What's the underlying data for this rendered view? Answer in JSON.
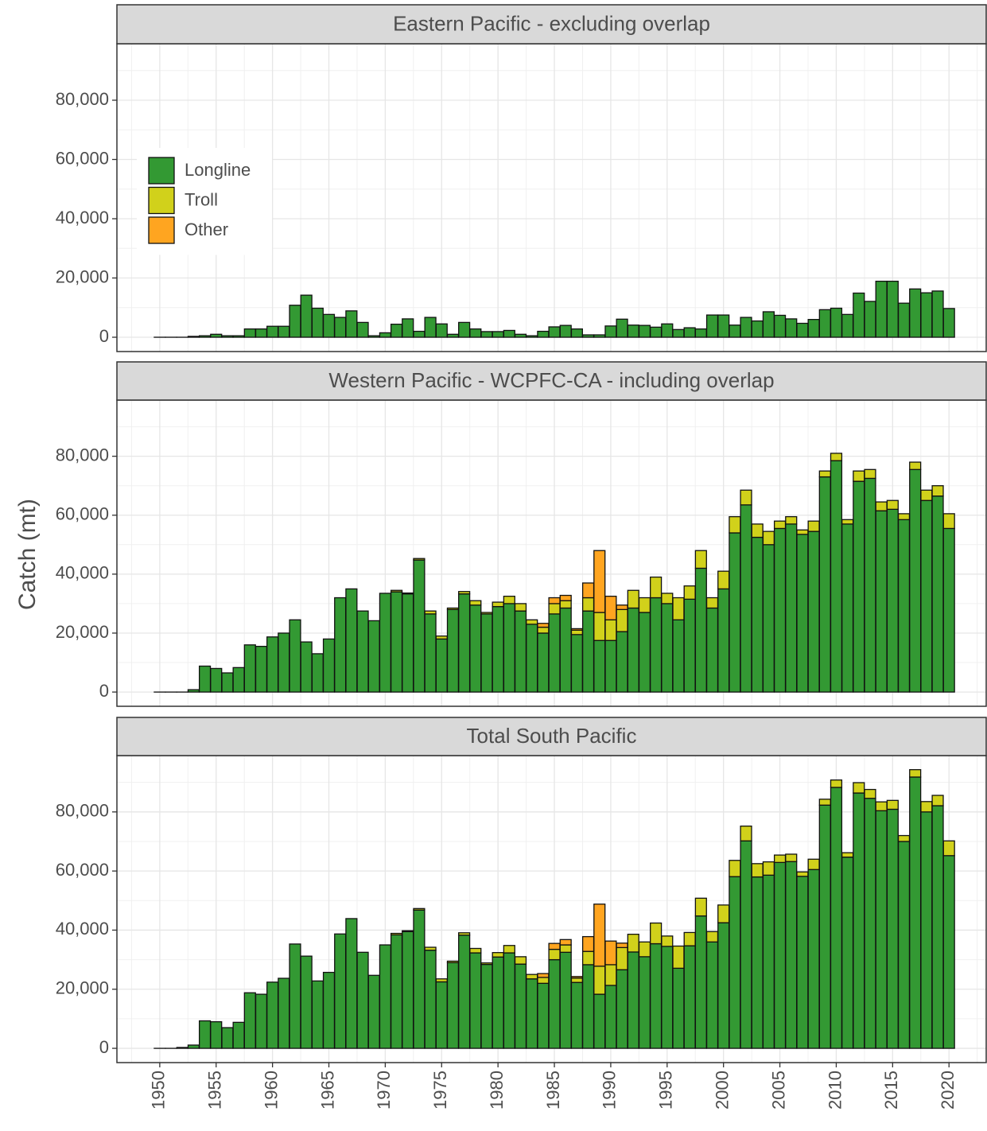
{
  "chart_data": [
    {
      "type": "bar",
      "stacked": true,
      "title": "Eastern Pacific - excluding overlap",
      "legend": "top-left",
      "grid": true,
      "ylim": [
        -4830,
        99060
      ],
      "yticks": [
        0,
        {
          "value": 20000,
          "label": "20,000"
        },
        {
          "value": 40000,
          "label": "40,000"
        },
        {
          "value": 60000,
          "label": "60,000"
        },
        {
          "value": 80000,
          "label": "80,000"
        }
      ],
      "xlim": [
        1946.2,
        2023.3
      ],
      "xticks": [
        1950,
        1955,
        1960,
        1965,
        1970,
        1975,
        1980,
        1985,
        1990,
        1995,
        2000,
        2005,
        2010,
        2015,
        2020
      ],
      "x": [
        1950,
        1951,
        1952,
        1953,
        1954,
        1955,
        1956,
        1957,
        1958,
        1959,
        1960,
        1961,
        1962,
        1963,
        1964,
        1965,
        1966,
        1967,
        1968,
        1969,
        1970,
        1971,
        1972,
        1973,
        1974,
        1975,
        1976,
        1977,
        1978,
        1979,
        1980,
        1981,
        1982,
        1983,
        1984,
        1985,
        1986,
        1987,
        1988,
        1989,
        1990,
        1991,
        1992,
        1993,
        1994,
        1995,
        1996,
        1997,
        1998,
        1999,
        2000,
        2001,
        2002,
        2003,
        2004,
        2005,
        2006,
        2007,
        2008,
        2009,
        2010,
        2011,
        2012,
        2013,
        2014,
        2015,
        2016,
        2017,
        2018,
        2019,
        2020
      ],
      "series": [
        {
          "name": "Longline",
          "color": "#339933",
          "values": [
            0,
            0,
            0,
            300,
            500,
            1000,
            500,
            500,
            2800,
            2800,
            3700,
            3700,
            10800,
            14200,
            9800,
            7700,
            6700,
            8900,
            5000,
            500,
            1500,
            4400,
            6200,
            2000,
            6700,
            4500,
            1000,
            5000,
            2800,
            1900,
            1900,
            2300,
            1000,
            500,
            2000,
            3500,
            4000,
            2800,
            800,
            800,
            3800,
            6100,
            4100,
            4000,
            3400,
            4500,
            2600,
            3200,
            2800,
            7500,
            7500,
            4100,
            6700,
            5500,
            8600,
            7400,
            6200,
            4700,
            6000,
            9300,
            9800,
            7700,
            14900,
            12100,
            18900,
            18900,
            11500,
            16300,
            15000,
            15600,
            9700
          ]
        },
        {
          "name": "Troll",
          "color": "#d1d11b",
          "values": [
            0,
            0,
            0,
            0,
            0,
            0,
            0,
            0,
            0,
            0,
            0,
            0,
            0,
            0,
            0,
            0,
            0,
            0,
            0,
            0,
            0,
            0,
            0,
            0,
            0,
            0,
            0,
            0,
            0,
            0,
            0,
            0,
            0,
            0,
            0,
            0,
            0,
            0,
            0,
            0,
            0,
            0,
            0,
            0,
            0,
            0,
            0,
            0,
            0,
            0,
            0,
            0,
            0,
            0,
            0,
            0,
            0,
            0,
            0,
            0,
            0,
            0,
            0,
            0,
            0,
            0,
            0,
            0,
            0,
            0,
            0
          ]
        },
        {
          "name": "Other",
          "color": "#ffa520",
          "values": [
            0,
            0,
            0,
            0,
            0,
            0,
            0,
            0,
            0,
            0,
            0,
            0,
            0,
            0,
            0,
            0,
            0,
            0,
            0,
            0,
            0,
            0,
            0,
            0,
            0,
            0,
            0,
            0,
            0,
            0,
            0,
            0,
            0,
            0,
            0,
            0,
            0,
            0,
            0,
            0,
            0,
            0,
            0,
            0,
            0,
            0,
            0,
            0,
            0,
            0,
            0,
            0,
            0,
            0,
            0,
            0,
            0,
            0,
            0,
            0,
            0,
            0,
            0,
            0,
            0,
            0,
            0,
            0,
            0,
            0,
            0
          ]
        }
      ]
    },
    {
      "type": "bar",
      "stacked": true,
      "title": "Western Pacific - WCPFC-CA - including overlap",
      "ylabel": "Catch (mt)",
      "grid": true,
      "ylim": [
        -4830,
        99060
      ],
      "yticks": [
        0,
        {
          "value": 20000,
          "label": "20,000"
        },
        {
          "value": 40000,
          "label": "40,000"
        },
        {
          "value": 60000,
          "label": "60,000"
        },
        {
          "value": 80000,
          "label": "80,000"
        }
      ],
      "xlim": [
        1946.2,
        2023.3
      ],
      "xticks": [
        1950,
        1955,
        1960,
        1965,
        1970,
        1975,
        1980,
        1985,
        1990,
        1995,
        2000,
        2005,
        2010,
        2015,
        2020
      ],
      "x": [
        1950,
        1951,
        1952,
        1953,
        1954,
        1955,
        1956,
        1957,
        1958,
        1959,
        1960,
        1961,
        1962,
        1963,
        1964,
        1965,
        1966,
        1967,
        1968,
        1969,
        1970,
        1971,
        1972,
        1973,
        1974,
        1975,
        1976,
        1977,
        1978,
        1979,
        1980,
        1981,
        1982,
        1983,
        1984,
        1985,
        1986,
        1987,
        1988,
        1989,
        1990,
        1991,
        1992,
        1993,
        1994,
        1995,
        1996,
        1997,
        1998,
        1999,
        2000,
        2001,
        2002,
        2003,
        2004,
        2005,
        2006,
        2007,
        2008,
        2009,
        2010,
        2011,
        2012,
        2013,
        2014,
        2015,
        2016,
        2017,
        2018,
        2019,
        2020
      ],
      "series": [
        {
          "name": "Longline",
          "color": "#339933",
          "values": [
            0,
            0,
            0,
            800,
            8800,
            8000,
            6500,
            8300,
            16000,
            15500,
            18700,
            20000,
            24500,
            17000,
            13000,
            18000,
            32000,
            35000,
            27500,
            24200,
            33500,
            34000,
            33300,
            44800,
            26500,
            18000,
            28000,
            33300,
            29500,
            26500,
            29000,
            30000,
            27500,
            23000,
            20000,
            26500,
            28500,
            19500,
            27500,
            17500,
            17500,
            20500,
            28500,
            27000,
            32000,
            30000,
            24500,
            31500,
            42000,
            28500,
            35000,
            54000,
            63500,
            52500,
            50000,
            55500,
            57000,
            53500,
            54500,
            73000,
            78500,
            57000,
            71500,
            72500,
            61500,
            62000,
            58500,
            75500,
            65000,
            66500,
            55500
          ]
        },
        {
          "name": "Troll",
          "color": "#d1d11b",
          "values": [
            0,
            0,
            0,
            0,
            0,
            0,
            0,
            0,
            0,
            0,
            0,
            0,
            0,
            0,
            0,
            0,
            0,
            0,
            0,
            0,
            0,
            500,
            300,
            500,
            1000,
            1000,
            500,
            800,
            1500,
            500,
            1500,
            2500,
            2500,
            1500,
            2000,
            3500,
            2500,
            1500,
            4500,
            9500,
            7000,
            7500,
            6000,
            5000,
            7000,
            3500,
            7500,
            4500,
            6000,
            3500,
            6000,
            5500,
            5000,
            4500,
            4500,
            2500,
            2500,
            1500,
            3500,
            2000,
            2500,
            1500,
            3500,
            3000,
            3000,
            3000,
            2000,
            2500,
            3500,
            3500,
            5000
          ]
        },
        {
          "name": "Other",
          "color": "#ffa520",
          "values": [
            0,
            0,
            0,
            0,
            0,
            0,
            0,
            0,
            0,
            0,
            0,
            0,
            0,
            0,
            0,
            0,
            0,
            0,
            0,
            0,
            0,
            0,
            0,
            0,
            0,
            0,
            0,
            0,
            0,
            0,
            0,
            0,
            0,
            0,
            1300,
            2000,
            1800,
            500,
            5000,
            21000,
            8000,
            1500,
            0,
            0,
            0,
            0,
            0,
            0,
            0,
            0,
            0,
            0,
            0,
            0,
            0,
            0,
            0,
            0,
            0,
            0,
            0,
            0,
            0,
            0,
            0,
            0,
            0,
            0,
            0,
            0,
            0
          ]
        }
      ]
    },
    {
      "type": "bar",
      "stacked": true,
      "title": "Total South Pacific",
      "grid": true,
      "ylim": [
        -4830,
        99060
      ],
      "yticks": [
        0,
        {
          "value": 20000,
          "label": "20,000"
        },
        {
          "value": 40000,
          "label": "40,000"
        },
        {
          "value": 60000,
          "label": "60,000"
        },
        {
          "value": 80000,
          "label": "80,000"
        }
      ],
      "xlim": [
        1946.2,
        2023.3
      ],
      "xticks": [
        1950,
        1955,
        1960,
        1965,
        1970,
        1975,
        1980,
        1985,
        1990,
        1995,
        2000,
        2005,
        2010,
        2015,
        2020
      ],
      "x": [
        1950,
        1951,
        1952,
        1953,
        1954,
        1955,
        1956,
        1957,
        1958,
        1959,
        1960,
        1961,
        1962,
        1963,
        1964,
        1965,
        1966,
        1967,
        1968,
        1969,
        1970,
        1971,
        1972,
        1973,
        1974,
        1975,
        1976,
        1977,
        1978,
        1979,
        1980,
        1981,
        1982,
        1983,
        1984,
        1985,
        1986,
        1987,
        1988,
        1989,
        1990,
        1991,
        1992,
        1993,
        1994,
        1995,
        1996,
        1997,
        1998,
        1999,
        2000,
        2001,
        2002,
        2003,
        2004,
        2005,
        2006,
        2007,
        2008,
        2009,
        2010,
        2011,
        2012,
        2013,
        2014,
        2015,
        2016,
        2017,
        2018,
        2019,
        2020
      ],
      "series": [
        {
          "name": "Longline",
          "color": "#339933",
          "values": [
            0,
            0,
            300,
            1100,
            9300,
            9000,
            7000,
            8800,
            18800,
            18300,
            22400,
            23700,
            35300,
            31200,
            22800,
            25700,
            38700,
            43900,
            32500,
            24700,
            35000,
            38400,
            39500,
            46800,
            33200,
            22500,
            29000,
            38300,
            32300,
            28400,
            30900,
            32300,
            28500,
            23500,
            22000,
            30000,
            32500,
            22300,
            28300,
            18300,
            21300,
            26600,
            32600,
            31000,
            35400,
            34500,
            27100,
            34700,
            44800,
            36000,
            42500,
            58100,
            70200,
            58000,
            58600,
            62900,
            63200,
            58200,
            60500,
            82300,
            88300,
            64700,
            86400,
            84600,
            80400,
            80900,
            70000,
            91800,
            80000,
            82100,
            65200
          ]
        },
        {
          "name": "Troll",
          "color": "#d1d11b",
          "values": [
            0,
            0,
            0,
            0,
            0,
            0,
            0,
            0,
            0,
            0,
            0,
            0,
            0,
            0,
            0,
            0,
            0,
            0,
            0,
            0,
            0,
            500,
            300,
            500,
            1000,
            1000,
            500,
            800,
            1500,
            500,
            1500,
            2500,
            2500,
            1500,
            2000,
            3500,
            2500,
            1500,
            4500,
            9500,
            7000,
            7500,
            6000,
            5000,
            7000,
            3500,
            7500,
            4500,
            6000,
            3500,
            6000,
            5500,
            5000,
            4500,
            4500,
            2500,
            2500,
            1500,
            3500,
            2000,
            2500,
            1500,
            3500,
            3000,
            3000,
            3000,
            2000,
            2500,
            3500,
            3500,
            5000
          ]
        },
        {
          "name": "Other",
          "color": "#ffa520",
          "values": [
            0,
            0,
            0,
            0,
            0,
            0,
            0,
            0,
            0,
            0,
            0,
            0,
            0,
            0,
            0,
            0,
            0,
            0,
            0,
            0,
            0,
            0,
            0,
            0,
            0,
            0,
            0,
            0,
            0,
            0,
            0,
            0,
            0,
            0,
            1300,
            2000,
            1800,
            500,
            5000,
            21000,
            8000,
            1500,
            0,
            0,
            0,
            0,
            0,
            0,
            0,
            0,
            0,
            0,
            0,
            0,
            0,
            0,
            0,
            0,
            0,
            0,
            0,
            0,
            0,
            0,
            0,
            0,
            0,
            0,
            0,
            0,
            0
          ]
        }
      ]
    }
  ]
}
